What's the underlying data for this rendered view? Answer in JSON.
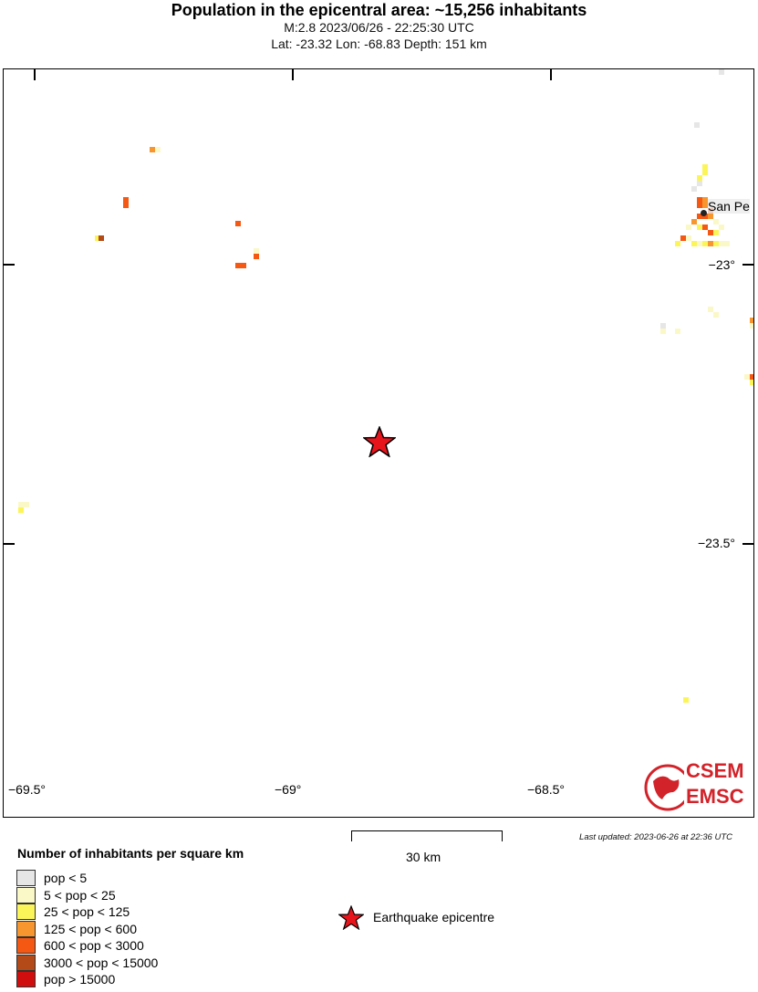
{
  "header": {
    "title": "Population in the epicentral area: ~15,256 inhabitants",
    "line1": "M:2.8 2023/06/26 - 22:25:30 UTC",
    "line2": "Lat: -23.32 Lon: -68.83 Depth: 151 km"
  },
  "map": {
    "lon_labels": [
      "−69.5°",
      "−69°",
      "−68.5°"
    ],
    "lat_labels": [
      "−23°",
      "−23.5°"
    ],
    "place_label": "San Pe",
    "epicentre": {
      "lat": -23.32,
      "lon": -68.83,
      "icon": "red-star-icon"
    },
    "logo": {
      "top": "CSEM",
      "bottom": "EMSC"
    }
  },
  "scale_bar": {
    "label": "30 km"
  },
  "updated": "Last updated: 2023-06-26 at 22:36 UTC",
  "legend": {
    "title": "Number of inhabitants per square km",
    "items": [
      {
        "label": "pop < 5",
        "color": "#e6e6e6"
      },
      {
        "label": "5 < pop < 25",
        "color": "#fbf8c8"
      },
      {
        "label": "25 < pop < 125",
        "color": "#fcf55a"
      },
      {
        "label": "125 < pop < 600",
        "color": "#f7962e"
      },
      {
        "label": "600 < pop < 3000",
        "color": "#f55812"
      },
      {
        "label": "3000 < pop < 15000",
        "color": "#b34a17"
      },
      {
        "label": "pop > 15000",
        "color": "#d10e0e"
      }
    ],
    "epicentre_label": "Earthquake epicentre"
  }
}
